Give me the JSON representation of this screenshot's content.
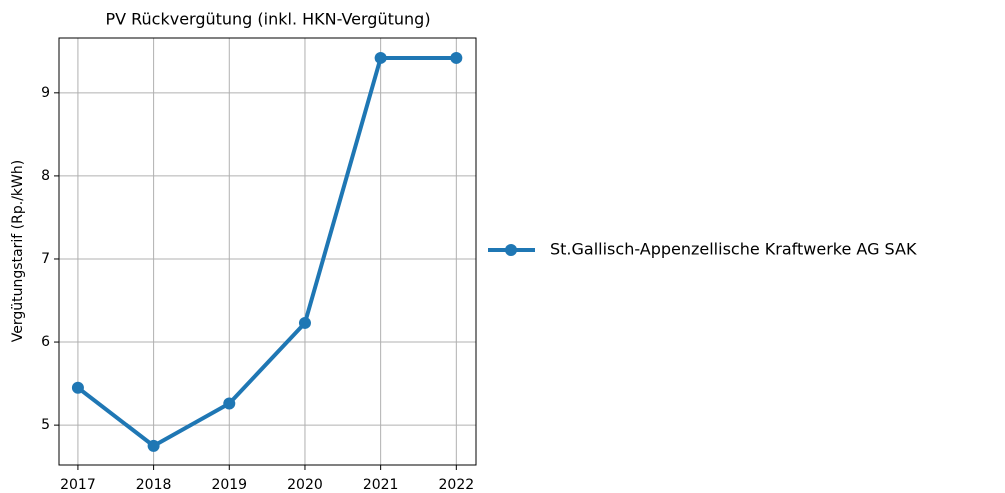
{
  "chart_data": {
    "type": "line",
    "title": "PV Rückvergütung (inkl. HKN-Vergütung)",
    "y_label": "Vergütungstarif (Rp./kWh)",
    "x": [
      2017,
      2018,
      2019,
      2020,
      2021,
      2022
    ],
    "series": [
      {
        "name": "St.Gallisch-Appenzellische Kraftwerke AG SAK",
        "color": "#1f77b4",
        "values": [
          5.45,
          4.75,
          5.26,
          6.23,
          9.42,
          9.42
        ]
      }
    ],
    "xlim": [
      2016.75,
      2022.26
    ],
    "xticks": [
      2017,
      2018,
      2019,
      2020,
      2021,
      2022
    ],
    "ylim": [
      4.52,
      9.66
    ],
    "yticks": [
      5,
      6,
      7,
      8,
      9
    ],
    "grid": true,
    "legend": "right"
  }
}
